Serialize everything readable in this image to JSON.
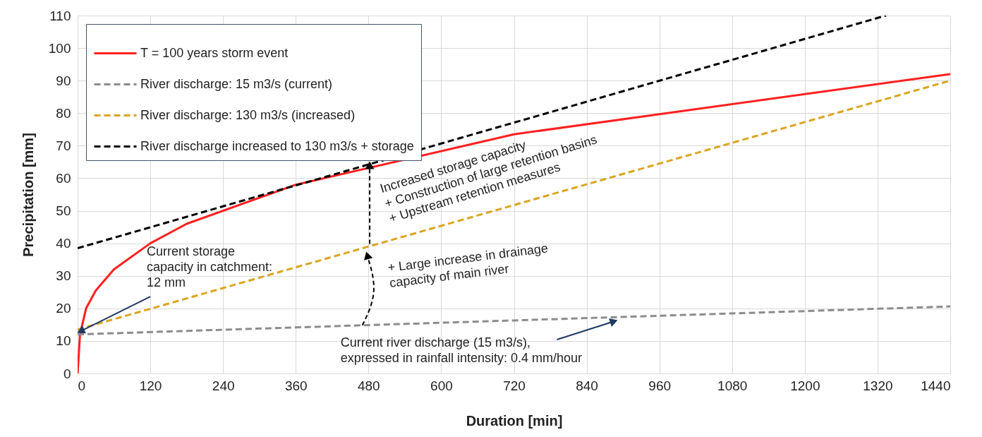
{
  "chart_data": {
    "type": "line",
    "xlabel": "Duration [min]",
    "ylabel": "Precipitation [mm]",
    "xlim": [
      0,
      1440
    ],
    "xticks": [
      0,
      120,
      240,
      360,
      480,
      600,
      720,
      840,
      960,
      1080,
      1200,
      1320,
      1440
    ],
    "ylim": [
      0,
      110
    ],
    "yticks": [
      0,
      10,
      20,
      30,
      40,
      50,
      60,
      70,
      80,
      90,
      100,
      110
    ],
    "grid": true,
    "legend": "top left",
    "marker": "none",
    "series": [
      {
        "name": "T = 100 years storm event",
        "color": "#ff2020",
        "line_style": "solid",
        "x": [
          0,
          4,
          14,
          30,
          60,
          120,
          180,
          360,
          720,
          1440
        ],
        "values": [
          0,
          12,
          20,
          25.5,
          32,
          40,
          46,
          58,
          73.5,
          92
        ]
      },
      {
        "name": "River discharge: 15 m3/s (current)",
        "color": "#8c8c8c",
        "line_style": "dashed",
        "x": [
          0,
          1440
        ],
        "values": [
          12,
          20.6
        ]
      },
      {
        "name": "River discharge: 130 m3/s (increased)",
        "color": "#daa520",
        "line_style": "dashed",
        "x": [
          0,
          1440
        ],
        "values": [
          13.5,
          90
        ]
      },
      {
        "name": "River discharge increased to 130 m3/s + storage",
        "color": "#000000",
        "line_style": "dashed",
        "x": [
          0,
          1334
        ],
        "values": [
          38.5,
          110
        ]
      }
    ],
    "annotations": [
      {
        "text": "Current storage\ncapacity in catchment:\n12 mm",
        "x": 5,
        "y": 13
      },
      {
        "text": "Current river discharge (15 m3/s),\nexpressed in rainfall intensity: 0.4 mm/hour",
        "x": 885,
        "y": 16
      },
      {
        "text": "Increased storage capacity\n+ Construction of large retention basins\n+ Upstream retention measures",
        "x": 482,
        "y": 64
      },
      {
        "text": "+ Large increase in drainage\ncapacity of main river",
        "x": 478,
        "y": 36.3
      }
    ]
  }
}
